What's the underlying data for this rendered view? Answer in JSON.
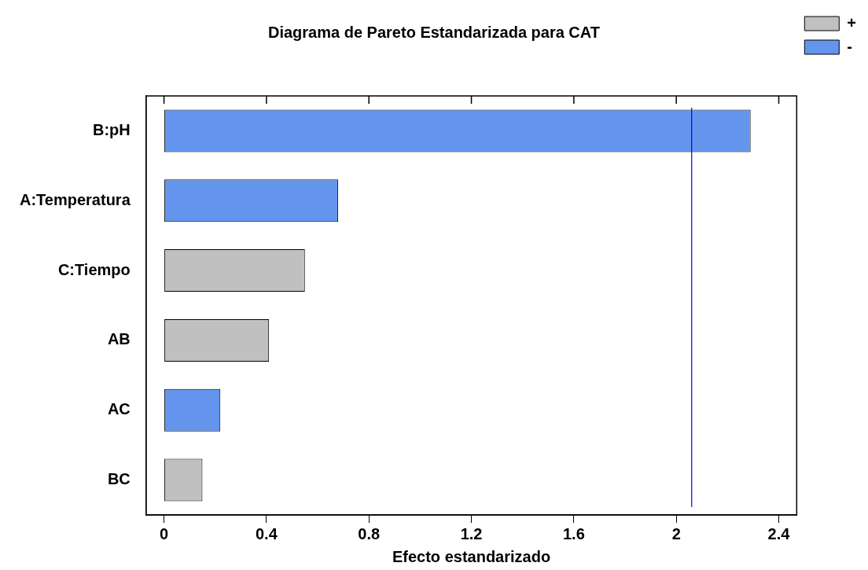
{
  "chart_data": {
    "type": "bar",
    "orientation": "horizontal",
    "stacked": true,
    "title": "Diagrama de Pareto Estandarizada para CAT",
    "xlabel": "Efecto estandarizado",
    "categories": [
      "B:pH",
      "A:Temperatura",
      "C:Tiempo",
      "AB",
      "AC",
      "BC"
    ],
    "series": [
      {
        "name": "+",
        "color": "#c0c0c0",
        "values": [
          null,
          null,
          0.55,
          0.41,
          null,
          0.15
        ]
      },
      {
        "name": "-",
        "color": "#6495ed",
        "values": [
          2.29,
          0.68,
          null,
          null,
          0.22,
          null
        ]
      }
    ],
    "xlim": [
      -0.07,
      2.47
    ],
    "xticks": [
      0,
      0.4,
      0.8,
      1.2,
      1.6,
      2,
      2.4
    ],
    "ref_lines": [
      {
        "axis": "x",
        "value": 2.06,
        "color": "#0000ff"
      }
    ],
    "grid": false,
    "legend": "top right"
  }
}
